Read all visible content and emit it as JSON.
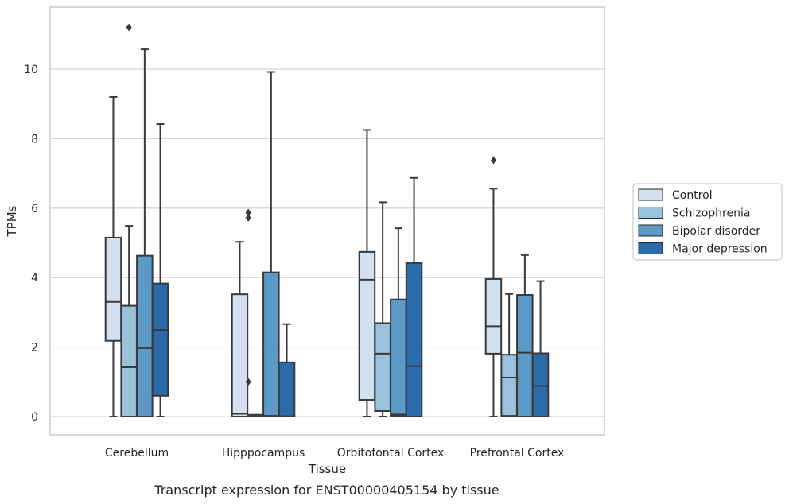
{
  "chart_data": {
    "type": "box",
    "title": "Transcript expression for ENST00000405154 by tissue",
    "xlabel": "Tissue",
    "ylabel": "TPMs",
    "ylim": [
      -0.55,
      11.8
    ],
    "yticks": [
      0,
      2,
      4,
      6,
      8,
      10
    ],
    "ytick_labels": [
      "0",
      "2",
      "4",
      "6",
      "8",
      "10"
    ],
    "grid": "horizontal",
    "legend_position": "right",
    "categories": [
      "Cerebellum",
      "Hipppocampus",
      "Orbitofontal Cortex",
      "Prefrontal Cortex"
    ],
    "series": [
      {
        "name": "Control",
        "color": "#d1e1f0",
        "boxes": [
          {
            "whisker_low": 0,
            "q1": 2.18,
            "median": 3.3,
            "q3": 5.15,
            "whisker_high": 9.2,
            "outliers": []
          },
          {
            "whisker_low": 0,
            "q1": 0.0,
            "median": 0.08,
            "q3": 3.52,
            "whisker_high": 5.03,
            "outliers": []
          },
          {
            "whisker_low": 0,
            "q1": 0.48,
            "median": 3.94,
            "q3": 4.74,
            "whisker_high": 8.25,
            "outliers": []
          },
          {
            "whisker_low": 0,
            "q1": 1.81,
            "median": 2.6,
            "q3": 3.96,
            "whisker_high": 6.56,
            "outliers": [
              7.38
            ]
          }
        ]
      },
      {
        "name": "Schizophrenia",
        "color": "#99c3dc",
        "boxes": [
          {
            "whisker_low": 0,
            "q1": 0.0,
            "median": 1.42,
            "q3": 3.19,
            "whisker_high": 5.49,
            "outliers": [
              11.2
            ]
          },
          {
            "whisker_low": 0,
            "q1": 0.0,
            "median": 0.01,
            "q3": 0.05,
            "whisker_high": 0.05,
            "outliers": []
          },
          {
            "whisker_low": 0,
            "q1": 0.16,
            "median": 1.81,
            "q3": 2.69,
            "whisker_high": 6.17,
            "outliers": []
          },
          {
            "whisker_low": 0,
            "q1": 0.02,
            "median": 1.12,
            "q3": 1.78,
            "whisker_high": 3.53,
            "outliers": []
          }
        ]
      },
      {
        "name": "Bipolar disorder",
        "color": "#5b9ac7",
        "boxes": [
          {
            "whisker_low": 0,
            "q1": 0.0,
            "median": 1.97,
            "q3": 4.63,
            "whisker_high": 10.57,
            "outliers": []
          },
          {
            "whisker_low": 0,
            "q1": 0.0,
            "median": 0.02,
            "q3": 4.15,
            "whisker_high": 9.92,
            "outliers": []
          },
          {
            "whisker_low": 0,
            "q1": 0.02,
            "median": 0.06,
            "q3": 3.37,
            "whisker_high": 5.42,
            "outliers": []
          },
          {
            "whisker_low": 0,
            "q1": 0.0,
            "median": 1.84,
            "q3": 3.5,
            "whisker_high": 4.65,
            "outliers": []
          }
        ]
      },
      {
        "name": "Major depression",
        "color": "#2b6aab",
        "boxes": [
          {
            "whisker_low": 0,
            "q1": 0.6,
            "median": 2.49,
            "q3": 3.83,
            "whisker_high": 8.42,
            "outliers": []
          },
          {
            "whisker_low": 0,
            "q1": 0.0,
            "median": 0.01,
            "q3": 1.56,
            "whisker_high": 2.66,
            "outliers": []
          },
          {
            "whisker_low": 0,
            "q1": 0.0,
            "median": 1.45,
            "q3": 4.42,
            "whisker_high": 6.87,
            "outliers": []
          },
          {
            "whisker_low": 0,
            "q1": 0.0,
            "median": 0.88,
            "q3": 1.82,
            "whisker_high": 3.9,
            "outliers": []
          }
        ]
      }
    ],
    "hippocampus_extra_outliers": {
      "Control": [
        1.0,
        5.72,
        5.87
      ]
    }
  }
}
